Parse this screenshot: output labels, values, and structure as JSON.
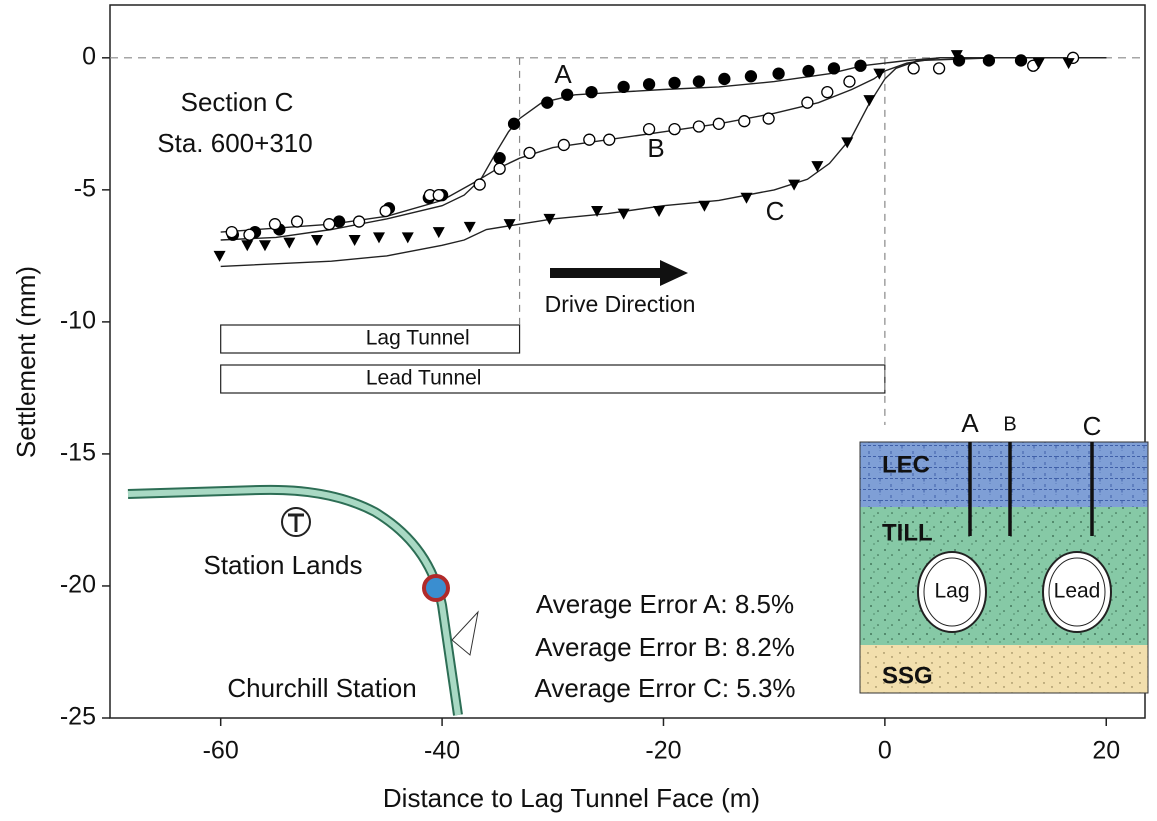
{
  "chart_data": {
    "type": "scatter",
    "x_label": "Distance to Lag Tunnel Face (m)",
    "y_label": "Settlement (mm)",
    "xlim": [
      -70,
      23.5
    ],
    "ylim": [
      -25,
      2
    ],
    "xticks": [
      -60,
      -40,
      -20,
      0,
      20
    ],
    "yticks": [
      0,
      -5,
      -10,
      -15,
      -20,
      -25
    ],
    "series": [
      {
        "name": "A",
        "marker": "filled-circle",
        "color": "#000000",
        "x": [
          -58.9,
          -56.9,
          -54.7,
          -49.3,
          -44.8,
          -41.2,
          -40,
          -34.8,
          -33.5,
          -30.5,
          -28.7,
          -26.5,
          -23.6,
          -21.3,
          -19,
          -16.8,
          -14.5,
          -12.1,
          -9.6,
          -6.9,
          -4.6,
          -2.2,
          6.7,
          9.4,
          12.3
        ],
        "values": [
          -6.7,
          -6.6,
          -6.5,
          -6.2,
          -5.7,
          -5.3,
          -5.2,
          -3.8,
          -2.5,
          -1.7,
          -1.4,
          -1.3,
          -1.1,
          -1.0,
          -0.95,
          -0.9,
          -0.8,
          -0.7,
          -0.6,
          -0.5,
          -0.4,
          -0.3,
          -0.1,
          -0.1,
          -0.1
        ]
      },
      {
        "name": "B",
        "marker": "open-circle",
        "color": "#000000",
        "x": [
          -59,
          -57.4,
          -55.1,
          -53.1,
          -50.2,
          -47.5,
          -45.1,
          -41.1,
          -40.3,
          -36.6,
          -34.8,
          -32.1,
          -29,
          -26.7,
          -24.9,
          -21.3,
          -19,
          -16.8,
          -15,
          -12.7,
          -10.5,
          -7,
          -5.2,
          -3.2,
          2.6,
          4.9,
          13.4,
          17
        ],
        "values": [
          -6.6,
          -6.7,
          -6.3,
          -6.2,
          -6.3,
          -6.2,
          -5.8,
          -5.2,
          -5.2,
          -4.8,
          -4.2,
          -3.6,
          -3.3,
          -3.1,
          -3.1,
          -2.7,
          -2.7,
          -2.6,
          -2.5,
          -2.4,
          -2.3,
          -1.7,
          -1.3,
          -0.9,
          -0.4,
          -0.4,
          -0.3,
          0
        ]
      },
      {
        "name": "C",
        "marker": "triangle-down",
        "color": "#000000",
        "x": [
          -60.1,
          -57.6,
          -56,
          -53.8,
          -51.3,
          -47.9,
          -45.7,
          -43.1,
          -40.3,
          -37.5,
          -33.9,
          -30.3,
          -26,
          -23.6,
          -20.4,
          -16.3,
          -12.5,
          -8.2,
          -6.1,
          -3.4,
          -1.4,
          -0.5,
          6.5,
          13.9,
          16.6
        ],
        "values": [
          -7.5,
          -7.1,
          -7.1,
          -7.0,
          -6.9,
          -6.9,
          -6.8,
          -6.8,
          -6.6,
          -6.4,
          -6.3,
          -6.1,
          -5.8,
          -5.9,
          -5.8,
          -5.6,
          -5.3,
          -4.8,
          -4.1,
          -3.2,
          -1.6,
          -0.6,
          0.1,
          -0.2,
          -0.2
        ]
      }
    ],
    "curves": [
      {
        "x": [
          -60,
          -55,
          -50,
          -45,
          -40,
          -38,
          -36.5,
          -35,
          -34,
          -33,
          -31,
          -28,
          -24,
          -20,
          -15,
          -10,
          -5,
          -2,
          0,
          2,
          5,
          10,
          20
        ],
        "values": [
          -6.9,
          -6.8,
          -6.5,
          -6.1,
          -5.6,
          -5.2,
          -4.6,
          -3.5,
          -2.8,
          -2.3,
          -1.7,
          -1.4,
          -1.3,
          -1.2,
          -1.1,
          -0.9,
          -0.6,
          -0.3,
          -0.2,
          -0.1,
          0,
          0,
          0
        ]
      },
      {
        "x": [
          -60,
          -50,
          -45,
          -40,
          -37,
          -35,
          -33,
          -30,
          -25,
          -20,
          -15,
          -10,
          -6,
          -3,
          -1,
          0,
          2,
          5,
          20
        ],
        "values": [
          -6.6,
          -6.3,
          -6.0,
          -5.4,
          -4.7,
          -4.2,
          -3.8,
          -3.4,
          -3.1,
          -2.8,
          -2.5,
          -2.1,
          -1.7,
          -1.2,
          -0.8,
          -0.5,
          -0.2,
          0,
          0
        ]
      },
      {
        "x": [
          -60,
          -50,
          -45,
          -40,
          -38,
          -36,
          -33,
          -30,
          -25,
          -20,
          -15,
          -10,
          -7,
          -5,
          -3,
          -1.5,
          0,
          1,
          3,
          10,
          20
        ],
        "values": [
          -7.9,
          -7.7,
          -7.5,
          -7.1,
          -6.9,
          -6.5,
          -6.3,
          -6.1,
          -5.9,
          -5.6,
          -5.4,
          -5.0,
          -4.6,
          -4.0,
          -3.0,
          -1.8,
          -0.8,
          -0.4,
          -0.1,
          0,
          0
        ]
      }
    ],
    "tunnels": [
      {
        "label": "Lag Tunnel",
        "x": [
          -60,
          -33
        ]
      },
      {
        "label": "Lead Tunnel",
        "x": [
          -60,
          0
        ]
      }
    ],
    "annotations": [
      "Section C",
      "Sta. 600+310",
      "Drive Direction",
      "Average Error A: 8.5%",
      "Average Error B: 8.2%",
      "Average Error C: 5.3%"
    ],
    "map_labels": [
      "Station Lands",
      "Churchill Station"
    ],
    "section_labels": {
      "layers": [
        "LEC",
        "TILL",
        "SSG"
      ],
      "tunnels": [
        "Lag",
        "Lead"
      ],
      "points": [
        "A",
        "B",
        "C"
      ]
    }
  }
}
